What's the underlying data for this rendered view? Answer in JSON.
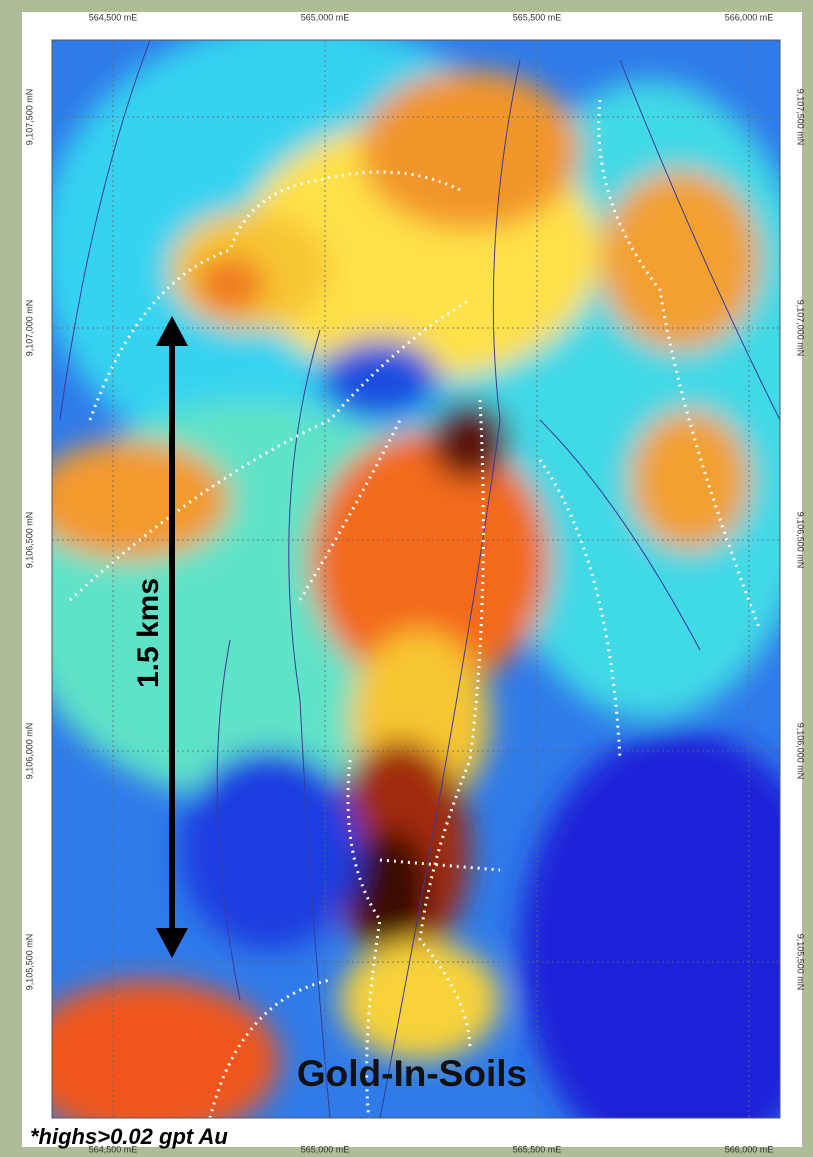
{
  "map": {
    "easting_labels": [
      "564,500 mE",
      "565,000 mE",
      "565,500 mE",
      "566,000 mE"
    ],
    "northing_labels": [
      "9,107,500 mN",
      "9,107,000 mN",
      "9,106,500 mN",
      "9,106,000 mN",
      "9,105,500 mN"
    ],
    "scale_label": "1.5 kms",
    "title": "Gold-In-Soils",
    "footnote": "*highs>0.02 gpt Au"
  }
}
